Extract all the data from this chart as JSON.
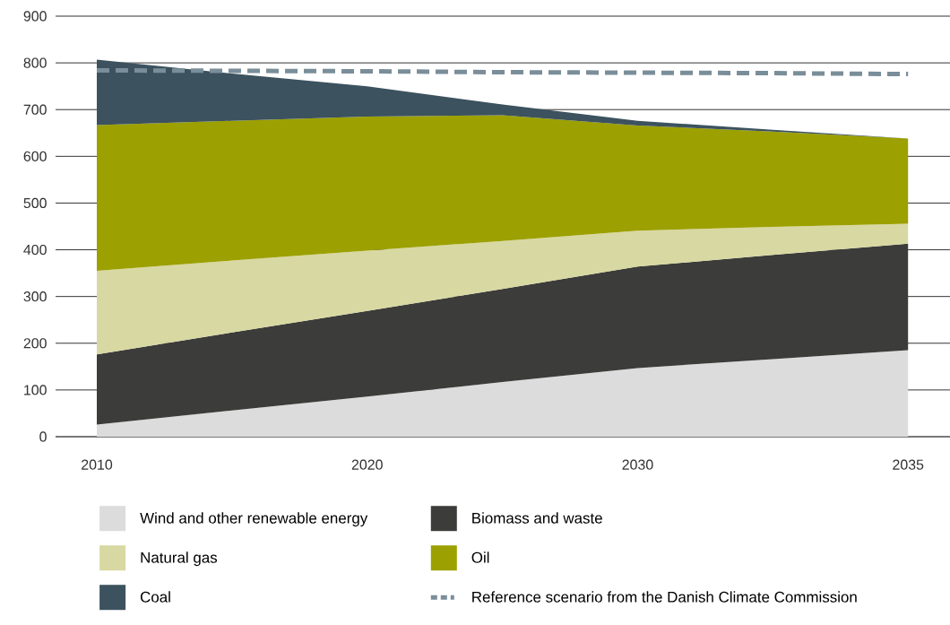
{
  "chart_data": {
    "type": "area",
    "stacked": true,
    "categories": [
      "2010",
      null,
      "2020",
      null,
      "2030",
      null,
      "2035"
    ],
    "series": [
      {
        "name": "Wind and other renewable energy",
        "color": "#dcdcdc",
        "values": [
          26,
          56,
          86,
          117,
          147,
          166,
          185
        ]
      },
      {
        "name": "Biomass and waste",
        "color": "#3c3c3a",
        "values": [
          150,
          167,
          183,
          199,
          217,
          223,
          228
        ]
      },
      {
        "name": "Natural gas",
        "color": "#d8d8a2",
        "values": [
          179,
          154,
          129,
          103,
          77,
          60,
          43
        ]
      },
      {
        "name": "Oil",
        "color": "#9ca000",
        "values": [
          312,
          299,
          287,
          269,
          225,
          204,
          182
        ]
      },
      {
        "name": "Coal",
        "color": "#3c525e",
        "values": [
          140,
          101,
          65,
          23,
          10,
          4,
          0
        ]
      },
      {
        "name": "Reference scenario from the Danish Climate Commission",
        "type": "line",
        "line_style": "dashed",
        "color": "#7a8e9a",
        "values": [
          784,
          783,
          782,
          780,
          779,
          778,
          776
        ]
      }
    ],
    "ylim": [
      0,
      900
    ],
    "yticks": [
      0,
      100,
      200,
      300,
      400,
      500,
      600,
      700,
      800,
      900
    ],
    "grid": "y",
    "legend": "bottom"
  }
}
